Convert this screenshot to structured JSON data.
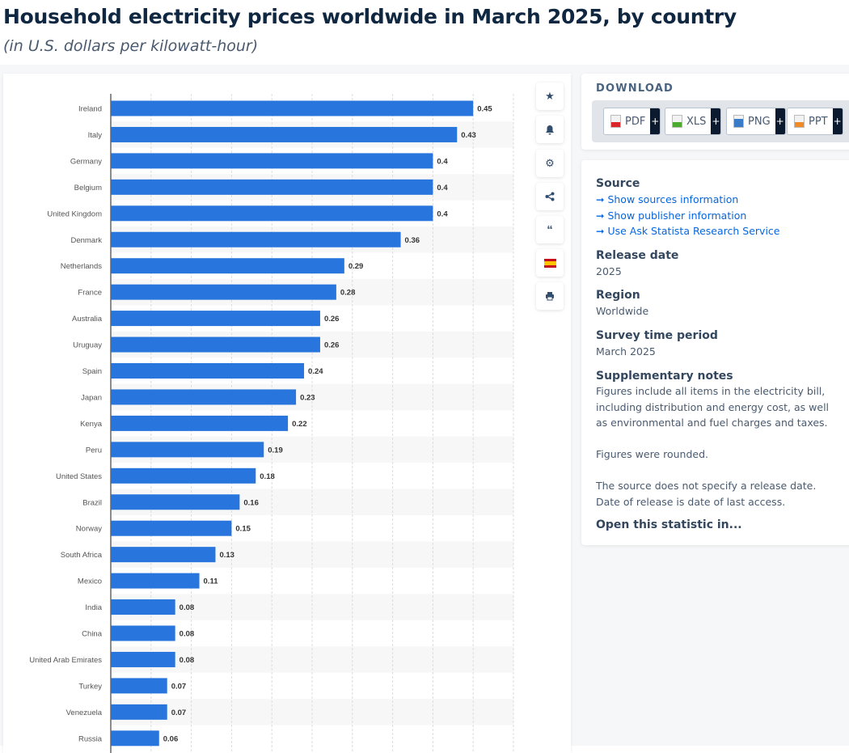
{
  "header": {
    "title": "Household electricity prices worldwide in March 2025, by country",
    "subtitle": "(in U.S. dollars per kilowatt-hour)"
  },
  "toolbar": {
    "icons": [
      "star-icon",
      "bell-icon",
      "gear-icon",
      "share-icon",
      "quote-icon",
      "flag-icon",
      "print-icon"
    ]
  },
  "download": {
    "heading": "DOWNLOAD",
    "buttons": [
      {
        "label": "PDF",
        "color": "#d9262b"
      },
      {
        "label": "XLS",
        "color": "#4caa2f"
      },
      {
        "label": "PNG",
        "color": "#3a7bc8"
      },
      {
        "label": "PPT",
        "color": "#f08a24"
      }
    ],
    "plus": "+"
  },
  "info": {
    "source_heading": "Source",
    "links": [
      "Show sources information",
      "Show publisher information",
      "Use Ask Statista Research Service"
    ],
    "release_heading": "Release date",
    "release": "2025",
    "region_heading": "Region",
    "region": "Worldwide",
    "period_heading": "Survey time period",
    "period": "March 2025",
    "notes_heading": "Supplementary notes",
    "notes": [
      "Figures include all items in the electricity bill, including distribution and energy cost, as well as environmental and fuel charges and taxes.",
      "Figures were rounded.",
      "The source does not specify a release date. Date of release is date of last access."
    ],
    "open": "Open this statistic in..."
  },
  "chart_data": {
    "type": "bar",
    "orientation": "horizontal",
    "title": "Household electricity prices worldwide in March 2025, by country",
    "ylabel": "",
    "xlabel": "U.S. dollars per kilowatt-hour",
    "xlim": [
      0,
      0.5
    ],
    "grid": true,
    "bar_color": "#2876dd",
    "categories": [
      "Ireland",
      "Italy",
      "Germany",
      "Belgium",
      "United Kingdom",
      "Denmark",
      "Netherlands",
      "France",
      "Australia",
      "Uruguay",
      "Spain",
      "Japan",
      "Kenya",
      "Peru",
      "United States",
      "Brazil",
      "Norway",
      "South Africa",
      "Mexico",
      "India",
      "China",
      "United Arab Emirates",
      "Turkey",
      "Venezuela",
      "Russia"
    ],
    "values": [
      0.45,
      0.43,
      0.4,
      0.4,
      0.4,
      0.36,
      0.29,
      0.28,
      0.26,
      0.26,
      0.24,
      0.23,
      0.22,
      0.19,
      0.18,
      0.16,
      0.15,
      0.13,
      0.11,
      0.08,
      0.08,
      0.08,
      0.07,
      0.07,
      0.06
    ]
  }
}
